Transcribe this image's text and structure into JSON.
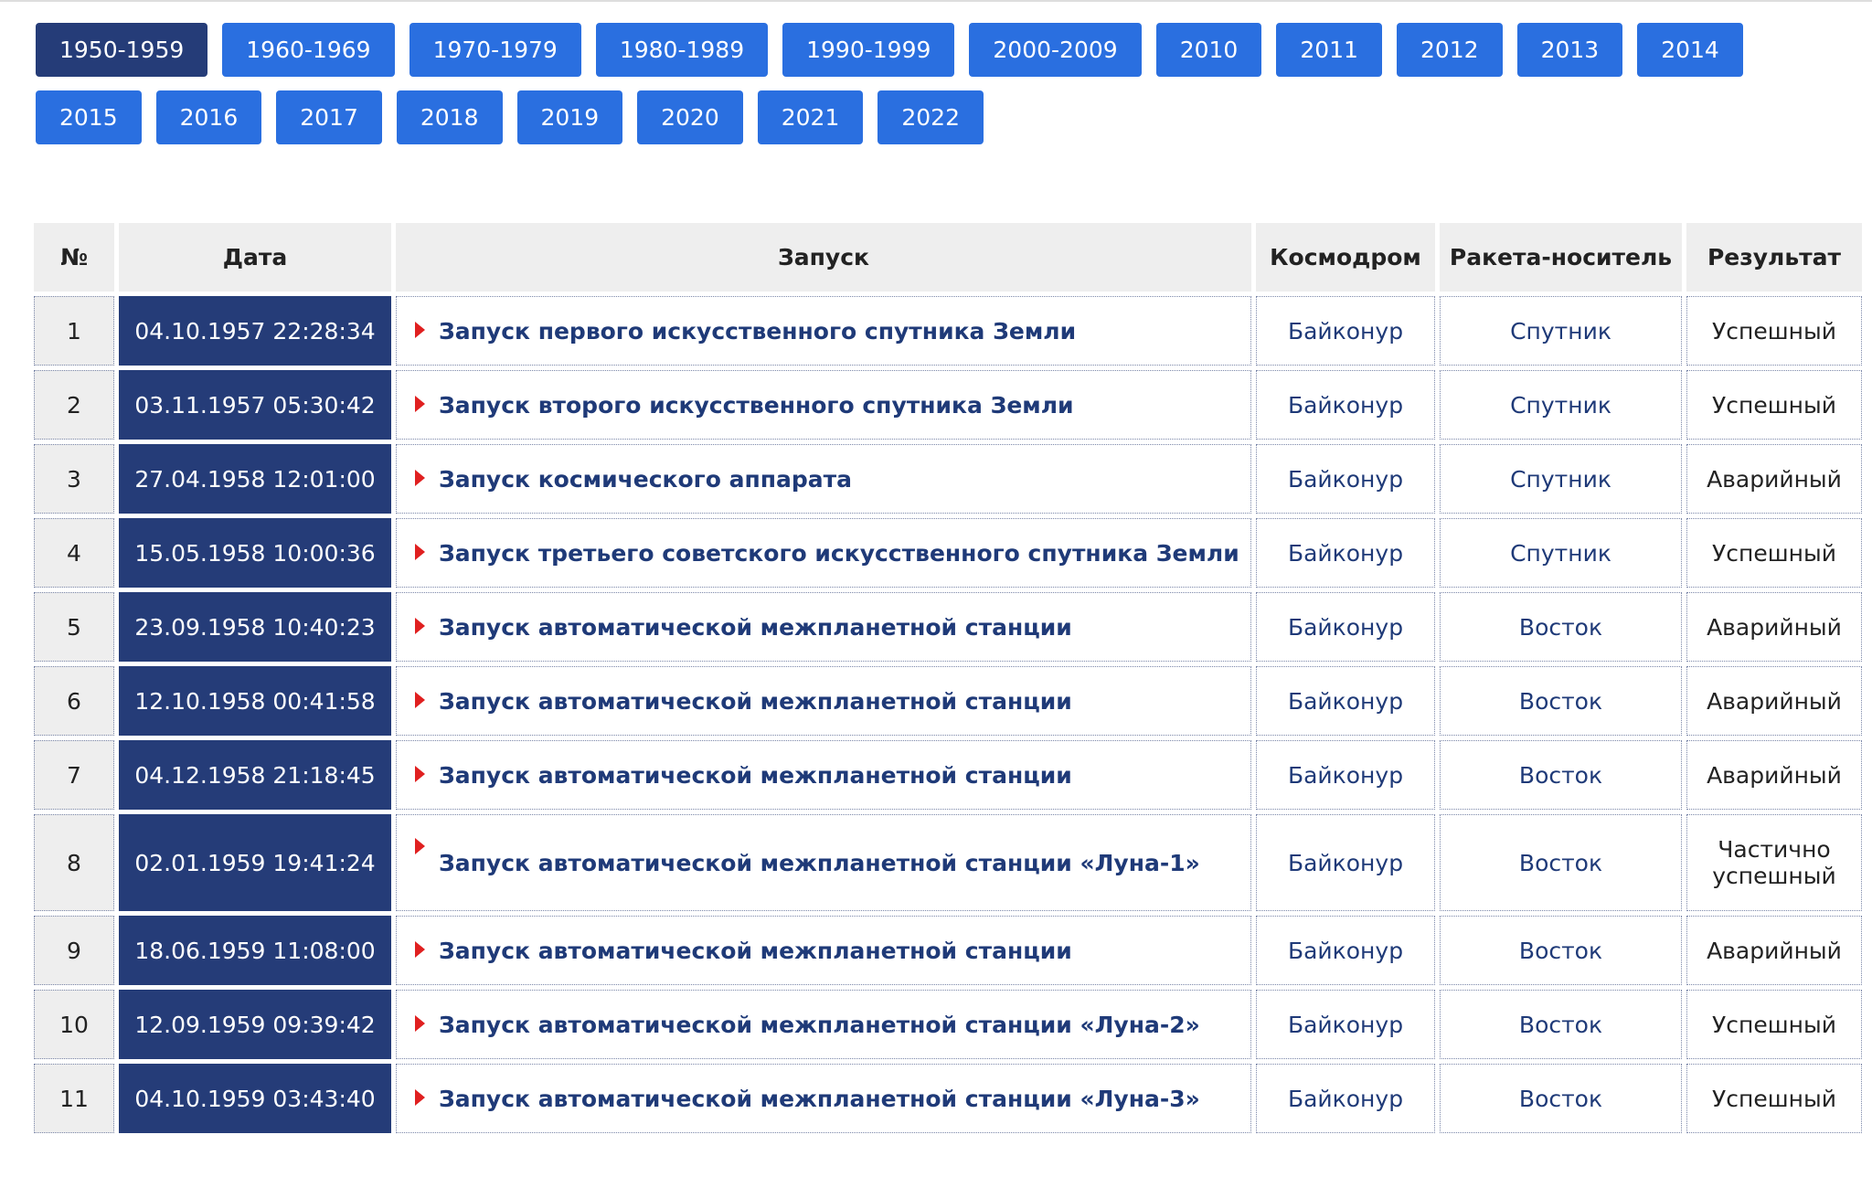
{
  "nav": {
    "buttons": [
      "1950-1959",
      "1960-1969",
      "1970-1979",
      "1980-1989",
      "1990-1999",
      "2000-2009",
      "2010",
      "2011",
      "2012",
      "2013",
      "2014",
      "2015",
      "2016",
      "2017",
      "2018",
      "2019",
      "2020",
      "2021",
      "2022"
    ]
  },
  "table": {
    "headers": [
      "№",
      "Дата",
      "Запуск",
      "Космодром",
      "Ракета-носитель",
      "Результат"
    ],
    "rows": [
      [
        "1",
        "04.10.1957 22:28:34",
        "Запуск первого искусственного спутника Земли",
        "Байконур",
        "Спутник",
        "Успешный"
      ],
      [
        "2",
        "03.11.1957 05:30:42",
        "Запуск второго искусственного спутника Земли",
        "Байконур",
        "Спутник",
        "Успешный"
      ],
      [
        "3",
        "27.04.1958 12:01:00",
        "Запуск космического аппарата",
        "Байконур",
        "Спутник",
        "Аварийный"
      ],
      [
        "4",
        "15.05.1958 10:00:36",
        "Запуск третьего советского искусственного спутника Земли",
        "Байконур",
        "Спутник",
        "Успешный"
      ],
      [
        "5",
        "23.09.1958 10:40:23",
        "Запуск автоматической межпланетной станции",
        "Байконур",
        "Восток",
        "Аварийный"
      ],
      [
        "6",
        "12.10.1958 00:41:58",
        "Запуск автоматической межпланетной станции",
        "Байконур",
        "Восток",
        "Аварийный"
      ],
      [
        "7",
        "04.12.1958 21:18:45",
        "Запуск автоматической межпланетной станции",
        "Байконур",
        "Восток",
        "Аварийный"
      ],
      [
        "8",
        "02.01.1959 19:41:24",
        "Запуск автоматической межпланетной станции «Луна-1»",
        "Байконур",
        "Восток",
        "Частично успешный"
      ],
      [
        "9",
        "18.06.1959 11:08:00",
        "Запуск автоматической межпланетной станции",
        "Байконур",
        "Восток",
        "Аварийный"
      ],
      [
        "10",
        "12.09.1959 09:39:42",
        "Запуск автоматической межпланетной станции «Луна-2»",
        "Байконур",
        "Восток",
        "Успешный"
      ],
      [
        "11",
        "04.10.1959 03:43:40",
        "Запуск автоматической межпланетной станции «Луна-3»",
        "Байконур",
        "Восток",
        "Успешный"
      ]
    ]
  }
}
